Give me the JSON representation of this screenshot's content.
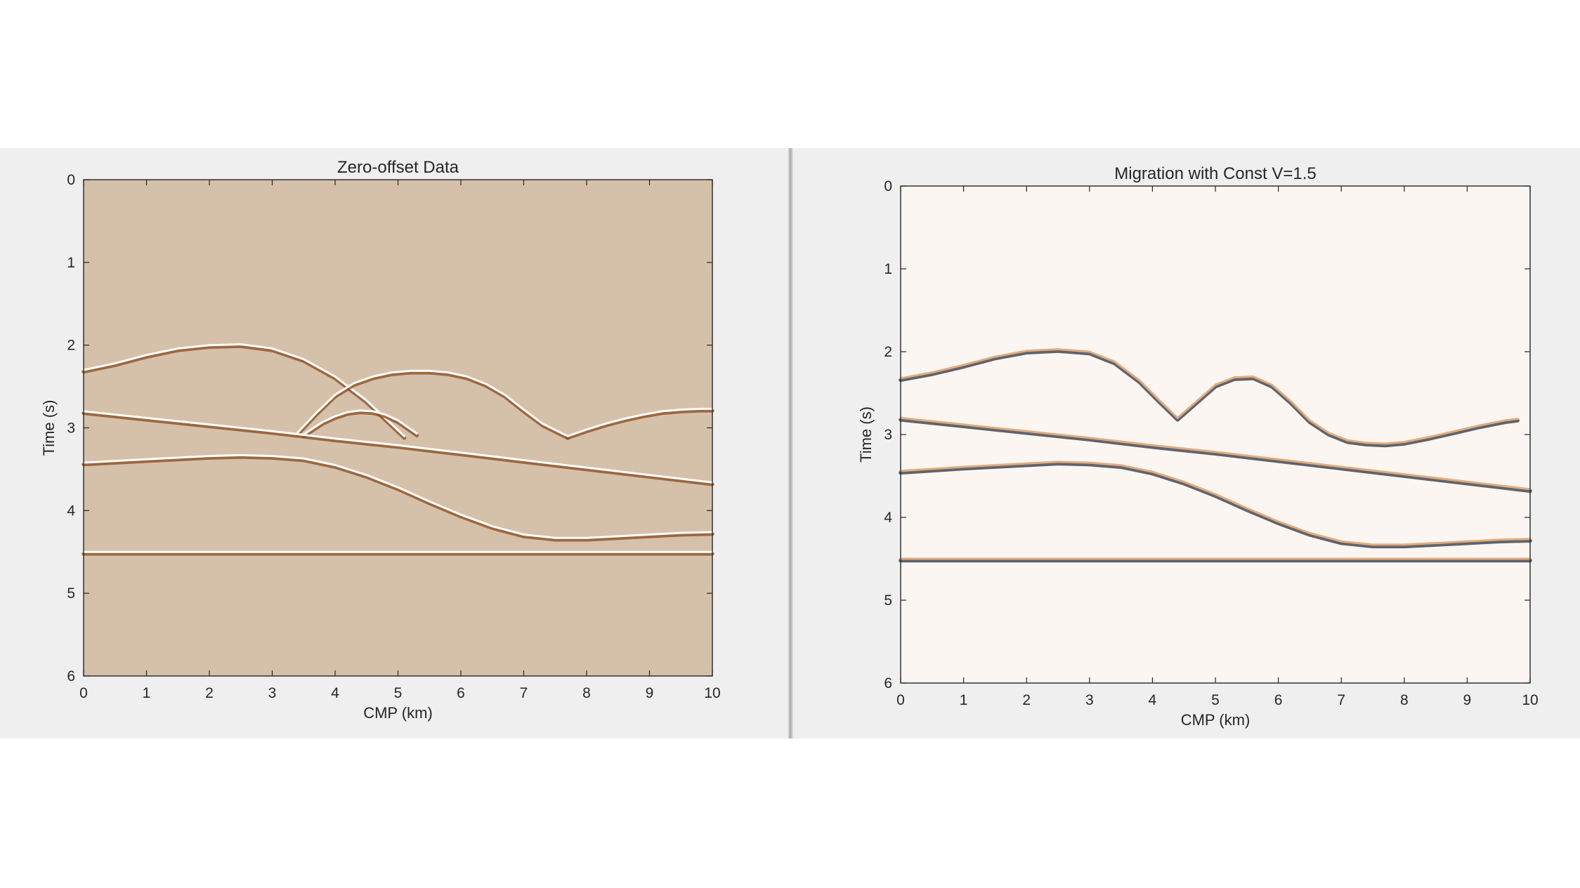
{
  "chart_data": [
    {
      "type": "heatmap",
      "title": "Zero-offset Data",
      "xlabel": "CMP (km)",
      "ylabel": "Time (s)",
      "xlim": [
        0,
        10
      ],
      "ylim": [
        0,
        6
      ],
      "y_reversed": true,
      "xticks": [
        "0",
        "1",
        "2",
        "3",
        "4",
        "5",
        "6",
        "7",
        "8",
        "9",
        "10"
      ],
      "yticks": [
        "0",
        "1",
        "2",
        "3",
        "4",
        "5",
        "6"
      ],
      "background_color": "#d5c0aa",
      "event_light_color": "#ffffff",
      "event_dark_color": "#8a4a1a",
      "events": [
        {
          "name": "anticline reflector",
          "x": [
            0,
            0.5,
            1,
            1.5,
            2,
            2.5,
            3,
            3.5,
            4,
            4.5,
            5.1
          ],
          "y": [
            2.3,
            2.22,
            2.12,
            2.04,
            2.0,
            1.99,
            2.04,
            2.17,
            2.38,
            2.67,
            3.1
          ]
        },
        {
          "name": "rising diffraction limb",
          "x": [
            3.4,
            3.7,
            4.0,
            4.3,
            4.6,
            4.9,
            5.2,
            5.5,
            5.8,
            6.1,
            6.4,
            6.7,
            7.0,
            7.3,
            7.7
          ],
          "y": [
            3.06,
            2.82,
            2.6,
            2.46,
            2.38,
            2.33,
            2.31,
            2.31,
            2.33,
            2.38,
            2.47,
            2.6,
            2.78,
            2.95,
            3.1
          ]
        },
        {
          "name": "small diffraction",
          "x": [
            3.5,
            3.8,
            4.0,
            4.2,
            4.4,
            4.6,
            4.8,
            5.0,
            5.3
          ],
          "y": [
            3.08,
            2.93,
            2.86,
            2.81,
            2.79,
            2.8,
            2.84,
            2.91,
            3.07
          ]
        },
        {
          "name": "right limb",
          "x": [
            7.7,
            8.0,
            8.3,
            8.6,
            8.9,
            9.2,
            9.5,
            9.8,
            10
          ],
          "y": [
            3.1,
            3.02,
            2.95,
            2.89,
            2.84,
            2.8,
            2.78,
            2.77,
            2.77
          ]
        },
        {
          "name": "dipping reflector",
          "x": [
            0,
            1,
            2,
            3,
            4,
            5,
            6,
            7,
            8,
            9,
            10
          ],
          "y": [
            2.8,
            2.88,
            2.96,
            3.04,
            3.13,
            3.21,
            3.3,
            3.39,
            3.48,
            3.57,
            3.66
          ]
        },
        {
          "name": "syncline reflector",
          "x": [
            0,
            1,
            2,
            2.5,
            3,
            3.5,
            4,
            4.5,
            5,
            5.5,
            6,
            6.5,
            7,
            7.5,
            8,
            8.5,
            9,
            9.5,
            10
          ],
          "y": [
            3.42,
            3.38,
            3.34,
            3.33,
            3.34,
            3.37,
            3.45,
            3.57,
            3.72,
            3.89,
            4.05,
            4.19,
            4.29,
            4.33,
            4.33,
            4.31,
            4.29,
            4.27,
            4.26
          ]
        },
        {
          "name": "flat reflector",
          "x": [
            0,
            10
          ],
          "y": [
            4.5,
            4.5
          ]
        }
      ]
    },
    {
      "type": "heatmap",
      "title": "Migration with Const V=1.5",
      "xlabel": "CMP (km)",
      "ylabel": "Time (s)",
      "xlim": [
        0,
        10
      ],
      "ylim": [
        0,
        6
      ],
      "y_reversed": true,
      "xticks": [
        "0",
        "1",
        "2",
        "3",
        "4",
        "5",
        "6",
        "7",
        "8",
        "9",
        "10"
      ],
      "yticks": [
        "0",
        "1",
        "2",
        "3",
        "4",
        "5",
        "6"
      ],
      "background_color": "#fbf6f1",
      "event_light_color": "#e2ab7e",
      "event_dark_color": "#2a3340",
      "events": [
        {
          "name": "migrated anticline and syncline",
          "x": [
            0,
            0.5,
            1,
            1.5,
            2,
            2.5,
            3,
            3.4,
            3.8,
            4.1,
            4.4,
            4.7,
            5.0,
            5.3,
            5.6,
            5.9,
            6.2,
            6.5,
            6.8,
            7.1,
            7.4,
            7.7,
            8.0,
            8.4,
            8.8,
            9.2,
            9.6,
            9.8
          ],
          "y": [
            2.32,
            2.25,
            2.16,
            2.06,
            1.99,
            1.97,
            2.0,
            2.12,
            2.35,
            2.58,
            2.8,
            2.6,
            2.4,
            2.31,
            2.3,
            2.4,
            2.6,
            2.83,
            2.98,
            3.07,
            3.1,
            3.11,
            3.09,
            3.03,
            2.96,
            2.89,
            2.83,
            2.81
          ]
        },
        {
          "name": "dipping reflector",
          "x": [
            0,
            1,
            2,
            3,
            4,
            5,
            6,
            7,
            8,
            9,
            10
          ],
          "y": [
            2.8,
            2.88,
            2.96,
            3.04,
            3.13,
            3.21,
            3.3,
            3.39,
            3.48,
            3.57,
            3.66
          ]
        },
        {
          "name": "syncline reflector",
          "x": [
            0,
            1,
            2,
            2.5,
            3,
            3.5,
            4,
            4.5,
            5,
            5.5,
            6,
            6.5,
            7,
            7.5,
            8,
            8.5,
            9,
            9.5,
            10
          ],
          "y": [
            3.44,
            3.39,
            3.35,
            3.33,
            3.34,
            3.37,
            3.45,
            3.57,
            3.72,
            3.89,
            4.05,
            4.19,
            4.29,
            4.33,
            4.33,
            4.31,
            4.29,
            4.27,
            4.26
          ]
        },
        {
          "name": "flat reflector",
          "x": [
            0,
            10
          ],
          "y": [
            4.5,
            4.5
          ]
        }
      ]
    }
  ]
}
